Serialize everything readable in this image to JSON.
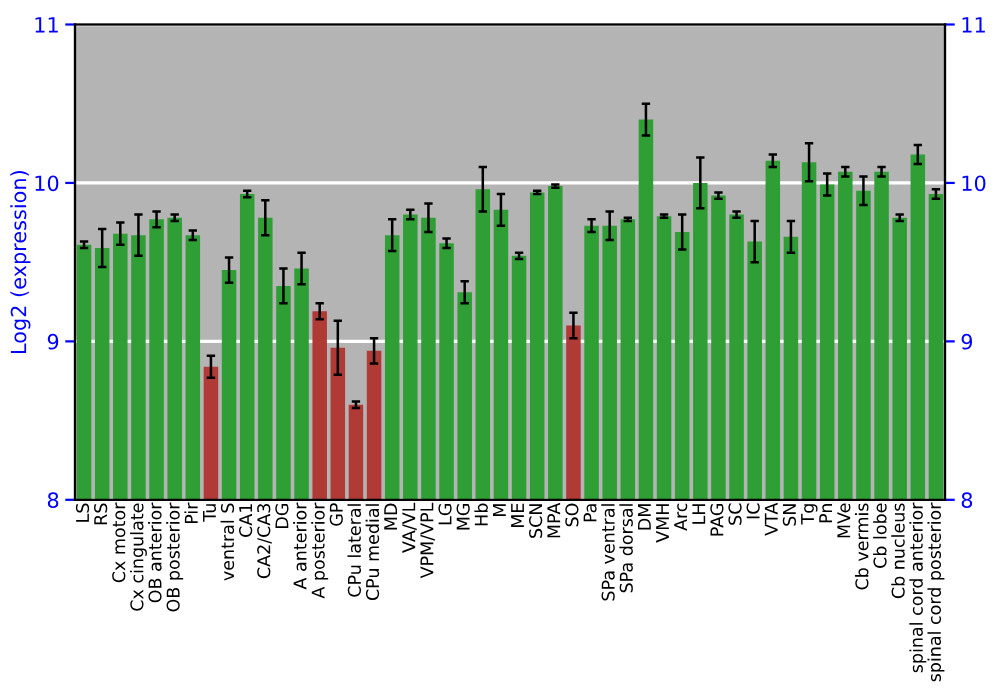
{
  "chart_data": {
    "type": "bar",
    "ylabel": "Log2 (expression)",
    "categories": [
      "LS",
      "RS",
      "Cx motor",
      "Cx cingulate",
      "OB anterior",
      "OB posterior",
      "Pir",
      "Tu",
      "ventral S",
      "CA1",
      "CA2/CA3",
      "DG",
      "A anterior",
      "A posterior",
      "GP",
      "CPu lateral",
      "CPu medial",
      "MD",
      "VA/VL",
      "VPM/VPL",
      "LG",
      "MG",
      "Hb",
      "M",
      "ME",
      "SCN",
      "MPA",
      "SO",
      "Pa",
      "SPa ventral",
      "SPa dorsal",
      "DM",
      "VMH",
      "Arc",
      "LH",
      "PAG",
      "SC",
      "IC",
      "VTA",
      "SN",
      "Tg",
      "Pn",
      "MVe",
      "Cb vermis",
      "Cb lobe",
      "Cb nucleus",
      "spinal cord anterior",
      "spinal cord posterior"
    ],
    "values": [
      9.61,
      9.59,
      9.68,
      9.67,
      9.77,
      9.78,
      9.67,
      8.84,
      9.45,
      9.93,
      9.78,
      9.35,
      9.46,
      9.19,
      8.96,
      8.6,
      8.94,
      9.67,
      9.8,
      9.78,
      9.62,
      9.31,
      9.96,
      9.83,
      9.54,
      9.94,
      9.98,
      9.1,
      9.73,
      9.73,
      9.77,
      10.4,
      9.79,
      9.69,
      10.0,
      9.92,
      9.8,
      9.63,
      10.14,
      9.66,
      10.13,
      9.99,
      10.07,
      9.95,
      10.07,
      9.78,
      10.18,
      9.93
    ],
    "errors": [
      0.02,
      0.12,
      0.07,
      0.13,
      0.05,
      0.02,
      0.03,
      0.07,
      0.08,
      0.02,
      0.11,
      0.11,
      0.1,
      0.05,
      0.17,
      0.02,
      0.08,
      0.1,
      0.03,
      0.09,
      0.03,
      0.07,
      0.14,
      0.1,
      0.02,
      0.01,
      0.01,
      0.08,
      0.04,
      0.09,
      0.01,
      0.1,
      0.01,
      0.11,
      0.16,
      0.02,
      0.02,
      0.13,
      0.04,
      0.1,
      0.12,
      0.07,
      0.03,
      0.09,
      0.03,
      0.02,
      0.06,
      0.03
    ],
    "colors": [
      "#2e9e35",
      "#2e9e35",
      "#2e9e35",
      "#2e9e35",
      "#2e9e35",
      "#2e9e35",
      "#2e9e35",
      "#b03a35",
      "#2e9e35",
      "#2e9e35",
      "#2e9e35",
      "#2e9e35",
      "#2e9e35",
      "#b03a35",
      "#b03a35",
      "#b03a35",
      "#b03a35",
      "#2e9e35",
      "#2e9e35",
      "#2e9e35",
      "#2e9e35",
      "#2e9e35",
      "#2e9e35",
      "#2e9e35",
      "#2e9e35",
      "#2e9e35",
      "#2e9e35",
      "#b03a35",
      "#2e9e35",
      "#2e9e35",
      "#2e9e35",
      "#2e9e35",
      "#2e9e35",
      "#2e9e35",
      "#2e9e35",
      "#2e9e35",
      "#2e9e35",
      "#2e9e35",
      "#2e9e35",
      "#2e9e35",
      "#2e9e35",
      "#2e9e35",
      "#2e9e35",
      "#2e9e35",
      "#2e9e35",
      "#2e9e35",
      "#2e9e35",
      "#2e9e35"
    ],
    "ylim": [
      8,
      11
    ],
    "yticks": [
      8,
      9,
      10,
      11
    ],
    "y2lim": [
      8,
      11
    ],
    "y2ticks": [
      8,
      9,
      10,
      11
    ],
    "grid": "y"
  }
}
